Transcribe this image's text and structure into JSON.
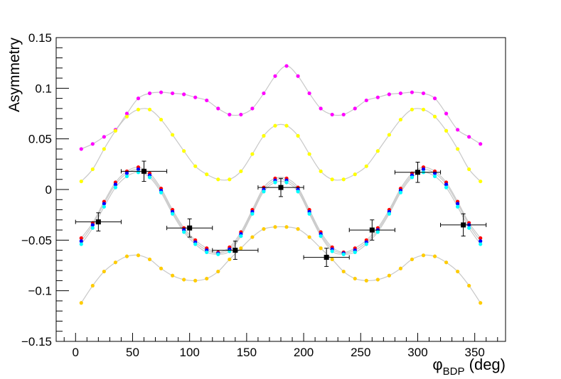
{
  "chart_data": {
    "type": "scatter",
    "ylabel": "Asymmetry",
    "xlabel": {
      "main": "φ",
      "sub": "BDP",
      "unit": " (deg)"
    },
    "xlim": [
      -17,
      377
    ],
    "ylim": [
      -0.15,
      0.15
    ],
    "xticks": [
      0,
      50,
      100,
      150,
      200,
      250,
      300,
      350
    ],
    "xtick_labels": [
      "0",
      "50",
      "100",
      "150",
      "200",
      "250",
      "300",
      "350"
    ],
    "yticks": [
      -0.15,
      -0.1,
      -0.05,
      0,
      0.05,
      0.1,
      0.15
    ],
    "ytick_labels": [
      "−0.15",
      "−0.1",
      "−0.05",
      "0",
      "0.05",
      "0.1",
      "0.15"
    ],
    "model_x": [
      5,
      15,
      25,
      35,
      45,
      55,
      65,
      75,
      85,
      95,
      105,
      115,
      125,
      135,
      145,
      155,
      165,
      175,
      185,
      195,
      205,
      215,
      225,
      235,
      245,
      255,
      265,
      275,
      285,
      295,
      305,
      315,
      325,
      335,
      345,
      355
    ],
    "models": [
      {
        "color": "#ff00ff",
        "values": [
          0.04,
          0.045,
          0.052,
          0.059,
          0.075,
          0.09,
          0.095,
          0.096,
          0.095,
          0.094,
          0.091,
          0.088,
          0.08,
          0.074,
          0.074,
          0.08,
          0.095,
          0.112,
          0.122,
          0.112,
          0.095,
          0.08,
          0.074,
          0.074,
          0.08,
          0.088,
          0.091,
          0.094,
          0.095,
          0.096,
          0.095,
          0.09,
          0.075,
          0.059,
          0.052,
          0.045
        ]
      },
      {
        "color": "#ffff00",
        "values": [
          0.008,
          0.02,
          0.04,
          0.058,
          0.072,
          0.079,
          0.079,
          0.069,
          0.054,
          0.038,
          0.023,
          0.015,
          0.01,
          0.01,
          0.018,
          0.035,
          0.053,
          0.063,
          0.063,
          0.053,
          0.035,
          0.018,
          0.01,
          0.01,
          0.015,
          0.023,
          0.038,
          0.054,
          0.069,
          0.079,
          0.079,
          0.072,
          0.058,
          0.04,
          0.02,
          0.008
        ]
      },
      {
        "color": "#ff0000",
        "values": [
          -0.048,
          -0.033,
          -0.012,
          0.007,
          0.018,
          0.022,
          0.016,
          0.001,
          -0.02,
          -0.038,
          -0.05,
          -0.058,
          -0.062,
          -0.057,
          -0.042,
          -0.02,
          0.002,
          0.011,
          0.011,
          0.002,
          -0.02,
          -0.042,
          -0.057,
          -0.062,
          -0.058,
          -0.05,
          -0.038,
          -0.02,
          0.001,
          0.016,
          0.022,
          0.018,
          0.007,
          -0.012,
          -0.033,
          -0.048
        ]
      },
      {
        "color": "#0000ff",
        "values": [
          -0.051,
          -0.035,
          -0.014,
          0.005,
          0.016,
          0.02,
          0.014,
          -0.001,
          -0.022,
          -0.04,
          -0.052,
          -0.06,
          -0.063,
          -0.059,
          -0.044,
          -0.022,
          0.0,
          0.009,
          0.009,
          0.0,
          -0.022,
          -0.044,
          -0.059,
          -0.063,
          -0.06,
          -0.052,
          -0.04,
          -0.022,
          -0.001,
          0.014,
          0.02,
          0.016,
          0.005,
          -0.014,
          -0.035,
          -0.051
        ]
      },
      {
        "color": "#00ffff",
        "values": [
          -0.054,
          -0.038,
          -0.017,
          0.002,
          0.013,
          0.017,
          0.012,
          -0.003,
          -0.024,
          -0.042,
          -0.054,
          -0.062,
          -0.064,
          -0.061,
          -0.046,
          -0.024,
          -0.002,
          0.007,
          0.007,
          -0.002,
          -0.024,
          -0.046,
          -0.061,
          -0.064,
          -0.062,
          -0.054,
          -0.042,
          -0.024,
          -0.003,
          0.012,
          0.017,
          0.013,
          0.002,
          -0.017,
          -0.038,
          -0.054
        ]
      },
      {
        "color": "#ffcc00",
        "values": [
          -0.112,
          -0.095,
          -0.081,
          -0.072,
          -0.066,
          -0.065,
          -0.069,
          -0.078,
          -0.085,
          -0.089,
          -0.09,
          -0.088,
          -0.081,
          -0.069,
          -0.058,
          -0.047,
          -0.039,
          -0.037,
          -0.037,
          -0.039,
          -0.047,
          -0.058,
          -0.069,
          -0.081,
          -0.088,
          -0.09,
          -0.089,
          -0.085,
          -0.078,
          -0.069,
          -0.065,
          -0.066,
          -0.072,
          -0.081,
          -0.095,
          -0.112
        ]
      }
    ],
    "data_points": [
      {
        "x": 20,
        "y": -0.032,
        "xerr": 20,
        "yerr": 0.009
      },
      {
        "x": 60,
        "y": 0.018,
        "xerr": 20,
        "yerr": 0.01
      },
      {
        "x": 100,
        "y": -0.038,
        "xerr": 20,
        "yerr": 0.009
      },
      {
        "x": 140,
        "y": -0.06,
        "xerr": 20,
        "yerr": 0.009
      },
      {
        "x": 180,
        "y": 0.002,
        "xerr": 20,
        "yerr": 0.009
      },
      {
        "x": 220,
        "y": -0.067,
        "xerr": 20,
        "yerr": 0.009
      },
      {
        "x": 260,
        "y": -0.04,
        "xerr": 20,
        "yerr": 0.01
      },
      {
        "x": 300,
        "y": 0.017,
        "xerr": 20,
        "yerr": 0.01
      },
      {
        "x": 340,
        "y": -0.035,
        "xerr": 20,
        "yerr": 0.011
      }
    ],
    "curve_color": "#c8c8c8",
    "data_color": "#000000"
  }
}
